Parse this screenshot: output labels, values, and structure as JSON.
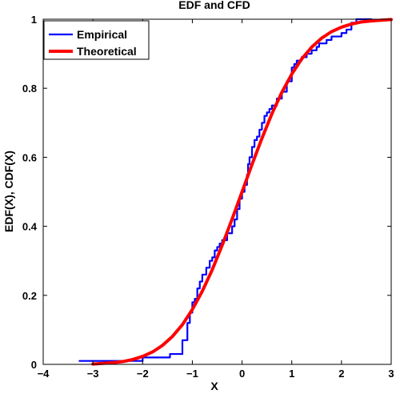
{
  "chart_data": {
    "type": "line",
    "title": "EDF and CFD",
    "xlabel": "X",
    "ylabel": "EDF(X), CDF(X)",
    "xlim": [
      -4,
      3
    ],
    "ylim": [
      0,
      1
    ],
    "xticks": [
      "−4",
      "−3",
      "−2",
      "−1",
      "0",
      "1",
      "2",
      "3"
    ],
    "yticks": [
      "0",
      "0.2",
      "0.4",
      "0.6",
      "0.8",
      "1"
    ],
    "grid": false,
    "legend_position": "top-left",
    "series": [
      {
        "name": "Empirical",
        "color": "#0000ff",
        "style": "step",
        "x": [
          -3.27,
          -2.0,
          -1.45,
          -1.2,
          -1.1,
          -1.05,
          -1.0,
          -0.95,
          -0.9,
          -0.85,
          -0.8,
          -0.72,
          -0.65,
          -0.6,
          -0.55,
          -0.5,
          -0.45,
          -0.4,
          -0.3,
          -0.2,
          -0.15,
          -0.1,
          -0.05,
          0.0,
          0.05,
          0.1,
          0.12,
          0.15,
          0.2,
          0.25,
          0.3,
          0.35,
          0.4,
          0.45,
          0.5,
          0.55,
          0.6,
          0.7,
          0.8,
          0.9,
          1.0,
          1.05,
          1.1,
          1.2,
          1.3,
          1.4,
          1.5,
          1.55,
          1.7,
          1.8,
          2.0,
          2.1,
          2.2,
          2.3,
          2.6
        ],
        "y": [
          0.01,
          0.02,
          0.03,
          0.07,
          0.12,
          0.15,
          0.18,
          0.19,
          0.22,
          0.24,
          0.26,
          0.28,
          0.3,
          0.31,
          0.33,
          0.34,
          0.35,
          0.36,
          0.38,
          0.4,
          0.42,
          0.45,
          0.48,
          0.5,
          0.52,
          0.55,
          0.58,
          0.6,
          0.63,
          0.65,
          0.66,
          0.68,
          0.7,
          0.72,
          0.73,
          0.74,
          0.75,
          0.77,
          0.79,
          0.82,
          0.86,
          0.87,
          0.88,
          0.89,
          0.9,
          0.91,
          0.92,
          0.93,
          0.94,
          0.95,
          0.96,
          0.97,
          0.99,
          1.0,
          1.0
        ]
      },
      {
        "name": "Theoretical",
        "color": "#ff0000",
        "style": "line",
        "x": [
          -3.0,
          -2.8,
          -2.6,
          -2.4,
          -2.2,
          -2.0,
          -1.8,
          -1.6,
          -1.4,
          -1.2,
          -1.0,
          -0.8,
          -0.6,
          -0.4,
          -0.2,
          0.0,
          0.2,
          0.4,
          0.6,
          0.8,
          1.0,
          1.2,
          1.4,
          1.6,
          1.8,
          2.0,
          2.2,
          2.4,
          2.6,
          2.8,
          3.0
        ],
        "y": [
          0.001,
          0.003,
          0.005,
          0.008,
          0.014,
          0.023,
          0.036,
          0.055,
          0.081,
          0.115,
          0.159,
          0.212,
          0.274,
          0.345,
          0.421,
          0.5,
          0.579,
          0.655,
          0.726,
          0.788,
          0.841,
          0.885,
          0.919,
          0.945,
          0.964,
          0.977,
          0.986,
          0.992,
          0.995,
          0.997,
          0.999
        ]
      }
    ]
  }
}
